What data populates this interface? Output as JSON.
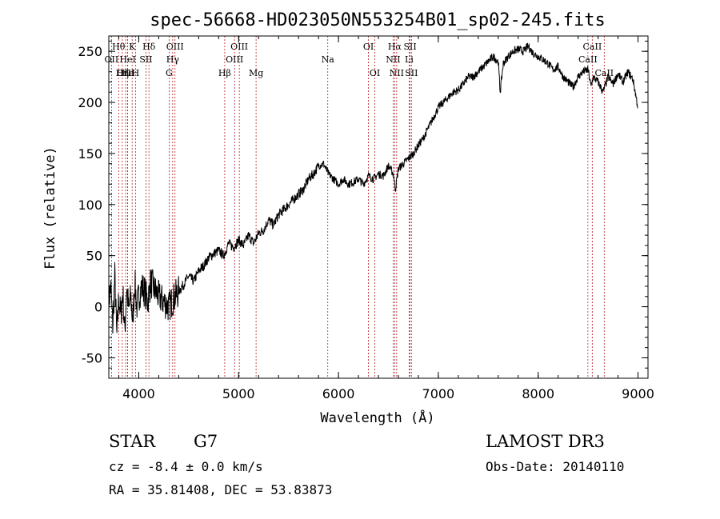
{
  "chart_data": {
    "type": "line",
    "title": "spec-56668-HD023050N553254B01_sp02-245.fits",
    "xlabel": "Wavelength (Å)",
    "ylabel": "Flux (relative)",
    "xlim": [
      3700,
      9100
    ],
    "ylim": [
      -70,
      265
    ],
    "x_ticks": [
      4000,
      5000,
      6000,
      7000,
      8000,
      9000
    ],
    "y_ticks": [
      -50,
      0,
      50,
      100,
      150,
      200,
      250
    ],
    "grid": false,
    "line_color": "#000000",
    "marker_color": "#b22222",
    "series": [
      {
        "name": "spectrum",
        "x": [
          3700,
          3720,
          3740,
          3760,
          3780,
          3800,
          3820,
          3840,
          3860,
          3880,
          3900,
          3920,
          3940,
          3960,
          3980,
          4000,
          4030,
          4060,
          4090,
          4120,
          4150,
          4200,
          4250,
          4300,
          4350,
          4400,
          4450,
          4500,
          4550,
          4600,
          4650,
          4700,
          4750,
          4800,
          4850,
          4900,
          4950,
          5000,
          5050,
          5100,
          5150,
          5200,
          5250,
          5300,
          5350,
          5400,
          5450,
          5500,
          5550,
          5600,
          5650,
          5700,
          5750,
          5800,
          5850,
          5900,
          5950,
          6000,
          6050,
          6100,
          6150,
          6200,
          6250,
          6300,
          6350,
          6400,
          6450,
          6500,
          6550,
          6570,
          6600,
          6650,
          6700,
          6750,
          6800,
          6850,
          6900,
          6950,
          7000,
          7050,
          7100,
          7150,
          7200,
          7250,
          7300,
          7350,
          7400,
          7450,
          7500,
          7550,
          7600,
          7620,
          7650,
          7700,
          7750,
          7800,
          7850,
          7900,
          7950,
          8000,
          8050,
          8100,
          8150,
          8200,
          8250,
          8300,
          8350,
          8400,
          8450,
          8500,
          8530,
          8550,
          8600,
          8650,
          8700,
          8750,
          8800,
          8850,
          8900,
          8950,
          9000
        ],
        "y": [
          5,
          20,
          -20,
          30,
          -30,
          10,
          -10,
          15,
          -25,
          20,
          -5,
          10,
          -15,
          25,
          0,
          10,
          20,
          15,
          5,
          25,
          18,
          10,
          5,
          0,
          8,
          15,
          22,
          30,
          25,
          35,
          40,
          48,
          52,
          55,
          50,
          62,
          58,
          65,
          60,
          70,
          62,
          72,
          75,
          85,
          80,
          90,
          95,
          100,
          105,
          110,
          115,
          125,
          130,
          138,
          140,
          130,
          125,
          120,
          125,
          120,
          122,
          125,
          120,
          128,
          125,
          130,
          128,
          138,
          130,
          115,
          135,
          140,
          145,
          150,
          158,
          165,
          175,
          185,
          195,
          200,
          205,
          210,
          212,
          218,
          225,
          225,
          230,
          235,
          240,
          245,
          240,
          210,
          238,
          245,
          250,
          252,
          250,
          255,
          248,
          245,
          242,
          238,
          232,
          235,
          225,
          220,
          215,
          225,
          230,
          232,
          215,
          225,
          220,
          210,
          225,
          218,
          228,
          220,
          230,
          222,
          195
        ]
      }
    ],
    "spectral_lines": [
      {
        "label": "Hθ",
        "wavelength": 3798,
        "row": 1
      },
      {
        "label": "OII",
        "wavelength": 3727,
        "row": 2
      },
      {
        "label": "OIII",
        "wavelength": 3869,
        "row": 3
      },
      {
        "label": "Hε",
        "wavelength": 3889,
        "row": 3
      },
      {
        "label": "HeI",
        "wavelength": 3889,
        "row": 2
      },
      {
        "label": "K",
        "wavelength": 3934,
        "row": 1
      },
      {
        "label": "Hη",
        "wavelength": 3835,
        "row": 3
      },
      {
        "label": "H",
        "wavelength": 3968,
        "row": 3
      },
      {
        "label": "SII",
        "wavelength": 4072,
        "row": 2
      },
      {
        "label": "Hδ",
        "wavelength": 4102,
        "row": 1
      },
      {
        "label": "OIII",
        "wavelength": 4363,
        "row": 1
      },
      {
        "label": "Hγ",
        "wavelength": 4340,
        "row": 2
      },
      {
        "label": "G",
        "wavelength": 4304,
        "row": 3
      },
      {
        "label": "Hβ",
        "wavelength": 4861,
        "row": 3
      },
      {
        "label": "OIII",
        "wavelength": 5007,
        "row": 1
      },
      {
        "label": "OIII",
        "wavelength": 4959,
        "row": 2
      },
      {
        "label": "Mg",
        "wavelength": 5175,
        "row": 3
      },
      {
        "label": "Na",
        "wavelength": 5893,
        "row": 2
      },
      {
        "label": "OI",
        "wavelength": 6300,
        "row": 1
      },
      {
        "label": "OI",
        "wavelength": 6364,
        "row": 3
      },
      {
        "label": "Hα",
        "wavelength": 6563,
        "row": 1
      },
      {
        "label": "SII",
        "wavelength": 6717,
        "row": 1
      },
      {
        "label": "NII",
        "wavelength": 6548,
        "row": 2
      },
      {
        "label": "Li",
        "wavelength": 6708,
        "row": 2
      },
      {
        "label": "NII",
        "wavelength": 6583,
        "row": 3
      },
      {
        "label": "SII",
        "wavelength": 6731,
        "row": 3
      },
      {
        "label": "CaII",
        "wavelength": 8542,
        "row": 1
      },
      {
        "label": "CaII",
        "wavelength": 8498,
        "row": 2
      },
      {
        "label": "CaII",
        "wavelength": 8662,
        "row": 3
      }
    ]
  },
  "info": {
    "object_class": "STAR",
    "subclass": "G7",
    "survey": "LAMOST DR3",
    "redshift": "cz = -8.4 ± 0.0 km/s",
    "obs_date": "Obs-Date: 20140110",
    "coordinates": "RA =  35.81408, DEC =  53.83873"
  }
}
